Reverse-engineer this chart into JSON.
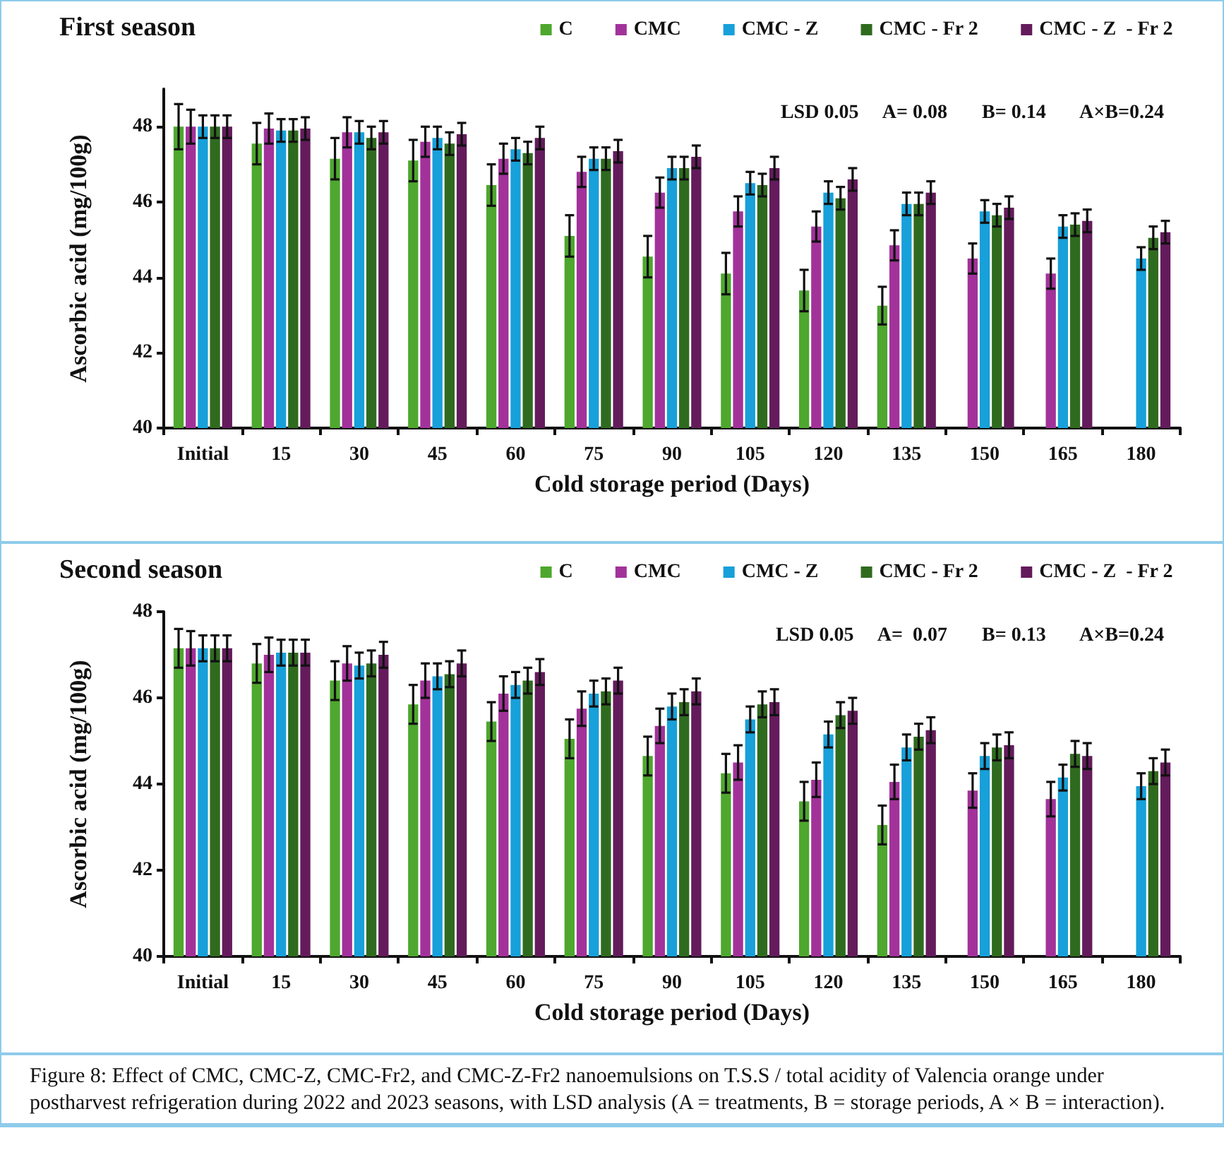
{
  "chart_data": [
    {
      "type": "bar",
      "title": "First season",
      "xlabel": "Cold storage period (Days)",
      "ylabel": "Ascorbic acid (mg/100g)",
      "categories": [
        "Initial",
        "15",
        "30",
        "45",
        "60",
        "75",
        "90",
        "105",
        "120",
        "135",
        "150",
        "165",
        "180"
      ],
      "ylim": [
        40,
        49
      ],
      "yticks": [
        40,
        42,
        44,
        46,
        48
      ],
      "grid": false,
      "legend": "top right",
      "annotations": [
        "LSD 0.05     A= 0.08       B= 0.14       A×B=0.24"
      ],
      "series": [
        {
          "name": "C",
          "color": "#4ea72e",
          "values": [
            48.0,
            47.55,
            47.15,
            47.1,
            46.45,
            45.1,
            44.55,
            44.1,
            43.65,
            43.25,
            null,
            null,
            null
          ],
          "errors": [
            0.6,
            0.55,
            0.55,
            0.55,
            0.55,
            0.55,
            0.55,
            0.55,
            0.55,
            0.5,
            null,
            null,
            null
          ]
        },
        {
          "name": "CMC",
          "color": "#a2329a",
          "values": [
            48.0,
            47.95,
            47.85,
            47.6,
            47.15,
            46.8,
            46.25,
            45.75,
            45.35,
            44.85,
            44.5,
            44.1,
            null
          ],
          "errors": [
            0.45,
            0.4,
            0.4,
            0.4,
            0.4,
            0.4,
            0.4,
            0.4,
            0.4,
            0.4,
            0.4,
            0.4,
            null
          ]
        },
        {
          "name": "CMC - Z",
          "color": "#17a0d9",
          "values": [
            48.0,
            47.9,
            47.85,
            47.7,
            47.4,
            47.15,
            46.9,
            46.5,
            46.25,
            45.95,
            45.75,
            45.35,
            44.5
          ],
          "errors": [
            0.3,
            0.3,
            0.3,
            0.3,
            0.3,
            0.3,
            0.3,
            0.3,
            0.3,
            0.3,
            0.3,
            0.3,
            0.3
          ]
        },
        {
          "name": "CMC - Fr 2",
          "color": "#2f6b1f",
          "values": [
            48.0,
            47.9,
            47.7,
            47.55,
            47.3,
            47.15,
            46.9,
            46.45,
            46.1,
            45.95,
            45.65,
            45.4,
            45.05
          ],
          "errors": [
            0.3,
            0.3,
            0.3,
            0.3,
            0.3,
            0.3,
            0.3,
            0.3,
            0.3,
            0.3,
            0.3,
            0.3,
            0.3
          ]
        },
        {
          "name": "CMC - Z  - Fr 2",
          "color": "#641b5c",
          "values": [
            48.0,
            47.95,
            47.85,
            47.8,
            47.7,
            47.35,
            47.2,
            46.9,
            46.6,
            46.25,
            45.85,
            45.5,
            45.2
          ],
          "errors": [
            0.3,
            0.3,
            0.3,
            0.3,
            0.3,
            0.3,
            0.3,
            0.3,
            0.3,
            0.3,
            0.3,
            0.3,
            0.3
          ]
        }
      ]
    },
    {
      "type": "bar",
      "title": "Second season",
      "xlabel": "Cold storage period (Days)",
      "ylabel": "Ascorbic acid (mg/100g)",
      "categories": [
        "Initial",
        "15",
        "30",
        "45",
        "60",
        "75",
        "90",
        "105",
        "120",
        "135",
        "150",
        "165",
        "180"
      ],
      "ylim": [
        40,
        48
      ],
      "yticks": [
        40,
        42,
        44,
        46,
        48
      ],
      "grid": false,
      "legend": "top right",
      "annotations": [
        "LSD 0.05     A=  0.07       B= 0.13       A×B=0.24",
        "Figure 8:  Effect of  CMC, CMC-Z, CMC-Fr2, and CMC-Z-Fr2 nanoemulsions on T.S.S / total acidity of Valencia orange under postharvest refrigeration during 2022 and 2023 seasons, with LSD analysis (A = treatments, B = storage periods, A × B = interaction)."
      ],
      "series": [
        {
          "name": "C",
          "color": "#4ea72e",
          "values": [
            47.15,
            46.8,
            46.4,
            45.85,
            45.45,
            45.05,
            44.65,
            44.25,
            43.6,
            43.05,
            null,
            null,
            null
          ],
          "errors": [
            0.45,
            0.45,
            0.45,
            0.45,
            0.45,
            0.45,
            0.45,
            0.45,
            0.45,
            0.45,
            null,
            null,
            null
          ]
        },
        {
          "name": "CMC",
          "color": "#a2329a",
          "values": [
            47.15,
            47.0,
            46.8,
            46.4,
            46.1,
            45.75,
            45.35,
            44.5,
            44.1,
            44.05,
            43.85,
            43.65,
            null
          ],
          "errors": [
            0.4,
            0.4,
            0.4,
            0.4,
            0.4,
            0.4,
            0.4,
            0.4,
            0.4,
            0.4,
            0.4,
            0.4,
            null
          ]
        },
        {
          "name": "CMC - Z",
          "color": "#17a0d9",
          "values": [
            47.15,
            47.05,
            46.75,
            46.5,
            46.3,
            46.1,
            45.8,
            45.5,
            45.15,
            44.85,
            44.65,
            44.15,
            43.95
          ],
          "errors": [
            0.3,
            0.3,
            0.3,
            0.3,
            0.3,
            0.3,
            0.3,
            0.3,
            0.3,
            0.3,
            0.3,
            0.3,
            0.3
          ]
        },
        {
          "name": "CMC - Fr 2",
          "color": "#2f6b1f",
          "values": [
            47.15,
            47.05,
            46.8,
            46.55,
            46.4,
            46.15,
            45.9,
            45.85,
            45.6,
            45.1,
            44.85,
            44.7,
            44.3
          ],
          "errors": [
            0.3,
            0.3,
            0.3,
            0.3,
            0.3,
            0.3,
            0.3,
            0.3,
            0.3,
            0.3,
            0.3,
            0.3,
            0.3
          ]
        },
        {
          "name": "CMC - Z  - Fr 2",
          "color": "#641b5c",
          "values": [
            47.15,
            47.05,
            47.0,
            46.8,
            46.6,
            46.4,
            46.15,
            45.9,
            45.7,
            45.25,
            44.9,
            44.65,
            44.5
          ],
          "errors": [
            0.3,
            0.3,
            0.3,
            0.3,
            0.3,
            0.3,
            0.3,
            0.3,
            0.3,
            0.3,
            0.3,
            0.3,
            0.3
          ]
        }
      ]
    }
  ]
}
